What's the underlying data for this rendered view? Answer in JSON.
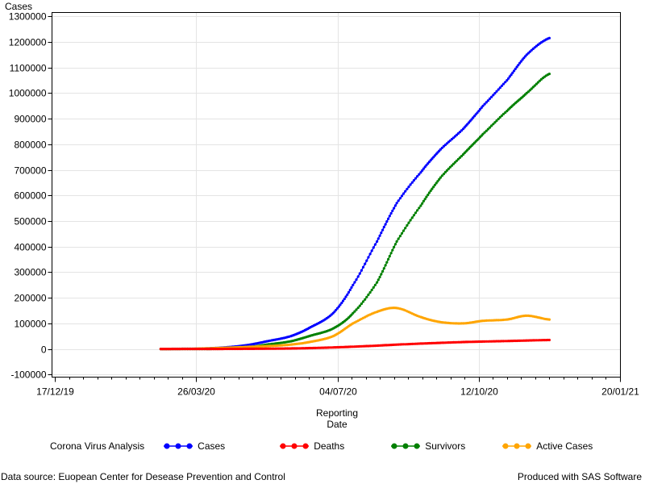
{
  "chart_data": {
    "type": "line",
    "ylabel": "Cases",
    "xlabel_lines": [
      "Reporting",
      "Date"
    ],
    "x_ticks": [
      "17/12/19",
      "26/03/20",
      "04/07/20",
      "12/10/20",
      "20/01/21"
    ],
    "y_ticks": [
      -100000,
      0,
      100000,
      200000,
      300000,
      400000,
      500000,
      600000,
      700000,
      800000,
      900000,
      1000000,
      1100000,
      1200000,
      1300000
    ],
    "ylim": [
      -110000,
      1315000
    ],
    "xlim_days_note": "",
    "grid": true,
    "legend_placement": "bottom",
    "legend_title": "Corona Virus Analysis",
    "x": [
      "2020-03-01",
      "2020-03-15",
      "2020-04-01",
      "2020-04-15",
      "2020-05-01",
      "2020-05-15",
      "2020-06-01",
      "2020-06-15",
      "2020-07-01",
      "2020-07-15",
      "2020-08-01",
      "2020-08-15",
      "2020-09-01",
      "2020-09-15",
      "2020-10-01",
      "2020-10-15",
      "2020-11-01",
      "2020-11-15",
      "2020-12-01"
    ],
    "series": [
      {
        "name": "Cases",
        "color": "#0000ff",
        "values": [
          0,
          500,
          2000,
          6000,
          15000,
          30000,
          50000,
          85000,
          140000,
          250000,
          420000,
          570000,
          690000,
          780000,
          860000,
          950000,
          1050000,
          1150000,
          1215000
        ]
      },
      {
        "name": "Deaths",
        "color": "#ff0000",
        "values": [
          0,
          0,
          50,
          200,
          600,
          1200,
          2000,
          3500,
          6000,
          9000,
          13000,
          17000,
          21000,
          24000,
          27000,
          29000,
          31000,
          33000,
          35000
        ]
      },
      {
        "name": "Survivors",
        "color": "#008000",
        "values": [
          0,
          0,
          100,
          1000,
          6000,
          17000,
          30000,
          52000,
          80000,
          140000,
          260000,
          420000,
          560000,
          670000,
          760000,
          840000,
          930000,
          1000000,
          1075000
        ]
      },
      {
        "name": "Active Cases",
        "color": "#ffa500",
        "values": [
          0,
          500,
          2000,
          4500,
          8000,
          11000,
          17000,
          28000,
          50000,
          100000,
          145000,
          160000,
          125000,
          105000,
          100000,
          110000,
          115000,
          130000,
          115000
        ]
      }
    ]
  },
  "footer": {
    "source": "Data source: Euopean Center for Desease Prevention and Control",
    "produced": "Produced with SAS Software"
  }
}
